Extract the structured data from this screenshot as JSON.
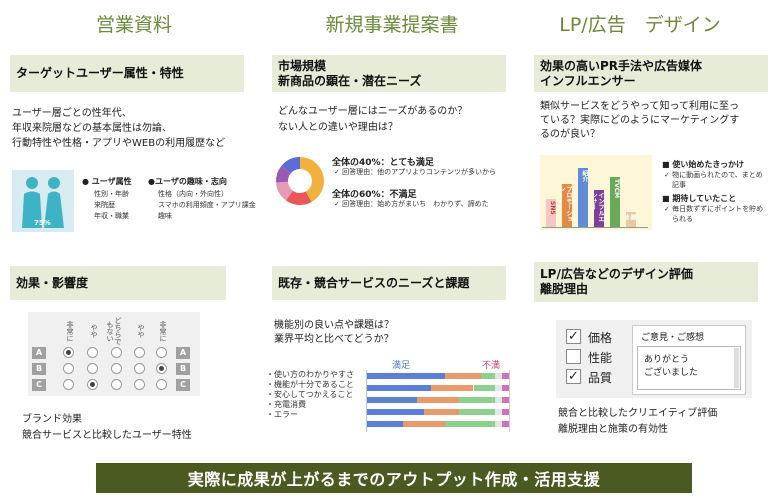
{
  "columns": {
    "left_title": "営業資料",
    "center_title": "新規事業提案書",
    "right_title": "LP/広告　デザイン"
  },
  "panel1": {
    "heading": "ターゲットユーザー属性・特性",
    "lines": [
      "ユーザー層ごとの性年代、",
      "年収来院層などの基本属性は勿論、",
      "行動特性や性格・アプリやWEBの利用履歴など"
    ],
    "pct": "75%",
    "attr_title": "● ユーザ属性",
    "attr_items": [
      "性別・年齢",
      "来院歴",
      "年収・職業"
    ],
    "interest_title": "●ユーザの趣味・志向",
    "interest_items": [
      "性格（内向・外向性）",
      "スマホの利用頻度・アプリ課金",
      "趣味"
    ]
  },
  "panel2": {
    "heading_1": "市場規模",
    "heading_2": "新商品の顕在・潜在ニーズ",
    "lines": [
      "どんなユーザー層にはニーズがあるのか？",
      "ない人との違いや理由は？"
    ],
    "stat1_title": "全体の40%：とても満足",
    "stat1_reason": "✓ 回答理由：他のアプリよりコンテンツが多いから",
    "stat2_title": "全体の60%：不満足",
    "stat2_reason": "✓ 回答理由：始め方がまいち　わかりず、諦めた",
    "donut_colors": [
      "#f2b13c",
      "#e8575a",
      "#e79ab5",
      "#9b59b6",
      "#5b6bd8"
    ]
  },
  "panel3": {
    "heading_1": "効果の高いPR手法や広告媒体",
    "heading_2": "インフルエンサー",
    "lines": [
      "類似サービスをどうやって知って利用に至っ",
      "ている？実際にどのようにマーケティングす",
      "るのが良い？"
    ],
    "bar_labels": [
      "SNS",
      "プロモーション",
      "紹介",
      "インフルエンサー",
      "TVCM",
      "雑誌"
    ],
    "bar_values": [
      45,
      70,
      95,
      60,
      80,
      25
    ],
    "bar_colors": [
      "#f4c6c6",
      "#e38a45",
      "#5f8cd6",
      "#7e3f9a",
      "#6aa85a",
      "#e5c9a0"
    ],
    "legend1_title": "■ 使い始めたきっかけ",
    "legend1_items": [
      "✓ 物に動画られたので、まとめ",
      "記事"
    ],
    "legend2_title": "■ 期待していたこと",
    "legend2_items": [
      "✓ 毎日数ずずにポイントを貯め",
      "られる"
    ]
  },
  "panel4": {
    "heading": "効果・影響度",
    "col_heads": [
      "非常に",
      "やや",
      "どちらでもない",
      "やや",
      "非常に"
    ],
    "row_labels": [
      "A",
      "B",
      "C"
    ],
    "selected": [
      0,
      4,
      1
    ],
    "lines": [
      "ブランド効果",
      "競合サービスと比較したユーザー特性"
    ]
  },
  "panel5": {
    "heading": "既存・競合サービスのニーズと課題",
    "lines": [
      "機能別の良い点や課題は？",
      "業界平均と比べてどうか？"
    ],
    "satisfied": "満足",
    "unsatisfied": "不満",
    "items": [
      "・使い方のわかりやすさ",
      "・機能が十分であること",
      "・安心してつかえること",
      "・充電消費",
      "・エラー"
    ],
    "stack_colors": [
      "#5b7fd6",
      "#e89a6a",
      "#8ed18f",
      "#e5e5e5",
      "#d070c0"
    ],
    "stacks": [
      [
        55,
        25,
        10,
        5,
        5
      ],
      [
        45,
        30,
        15,
        5,
        5
      ],
      [
        35,
        30,
        25,
        5,
        5
      ],
      [
        40,
        25,
        25,
        5,
        5
      ],
      [
        25,
        30,
        35,
        5,
        5
      ]
    ]
  },
  "panel6": {
    "heading_1": "LP/広告などのデザイン評価",
    "heading_2": "離脱理由",
    "checks": [
      {
        "label": "価格",
        "checked": true
      },
      {
        "label": "性能",
        "checked": false
      },
      {
        "label": "品質",
        "checked": true
      }
    ],
    "opinion_title": "ご意見・ご感想",
    "opinion_lines": [
      "ありがとう",
      "ございました"
    ],
    "lines": [
      "競合と比較したクリエイティブ評価",
      "離脱理由と施策の有効性"
    ]
  },
  "bottom_banner": "実際に成果が上がるまでのアウトプット作成・活用支援"
}
